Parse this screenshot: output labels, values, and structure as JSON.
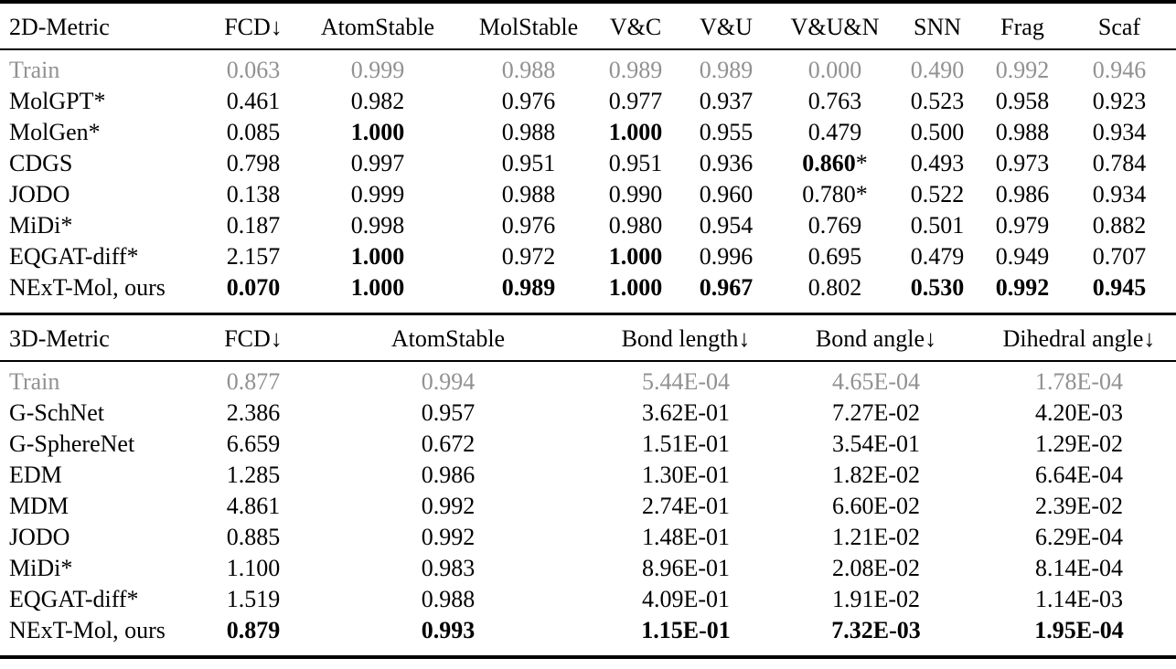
{
  "colors": {
    "background": "#ffffff",
    "text": "#000000",
    "muted_row": "#919191",
    "rule": "#000000"
  },
  "tables": [
    {
      "id": "table-2d",
      "header": [
        "2D-Metric",
        "FCD↓",
        "AtomStable",
        "MolStable",
        "V&C",
        "V&U",
        "V&U&N",
        "SNN",
        "Frag",
        "Scaf"
      ],
      "rows": [
        {
          "label": "Train",
          "muted": true,
          "values": [
            "0.063",
            "0.999",
            "0.988",
            "0.989",
            "0.989",
            "0.000",
            "0.490",
            "0.992",
            "0.946"
          ],
          "bold": []
        },
        {
          "label": "MolGPT*",
          "muted": false,
          "values": [
            "0.461",
            "0.982",
            "0.976",
            "0.977",
            "0.937",
            "0.763",
            "0.523",
            "0.958",
            "0.923"
          ],
          "bold": []
        },
        {
          "label": "MolGen*",
          "muted": false,
          "values": [
            "0.085",
            "1.000",
            "0.988",
            "1.000",
            "0.955",
            "0.479",
            "0.500",
            "0.988",
            "0.934"
          ],
          "bold": [
            1,
            3
          ]
        },
        {
          "label": "CDGS",
          "muted": false,
          "values": [
            "0.798",
            "0.997",
            "0.951",
            "0.951",
            "0.936",
            "0.860*",
            "0.493",
            "0.973",
            "0.784"
          ],
          "bold": [
            5
          ]
        },
        {
          "label": "JODO",
          "muted": false,
          "values": [
            "0.138",
            "0.999",
            "0.988",
            "0.990",
            "0.960",
            "0.780*",
            "0.522",
            "0.986",
            "0.934"
          ],
          "bold": []
        },
        {
          "label": "MiDi*",
          "muted": false,
          "values": [
            "0.187",
            "0.998",
            "0.976",
            "0.980",
            "0.954",
            "0.769",
            "0.501",
            "0.979",
            "0.882"
          ],
          "bold": []
        },
        {
          "label": "EQGAT-diff*",
          "muted": false,
          "values": [
            "2.157",
            "1.000",
            "0.972",
            "1.000",
            "0.996",
            "0.695",
            "0.479",
            "0.949",
            "0.707"
          ],
          "bold": [
            1,
            3
          ]
        },
        {
          "label": "NExT-Mol, ours",
          "muted": false,
          "values": [
            "0.070",
            "1.000",
            "0.989",
            "1.000",
            "0.967",
            "0.802",
            "0.530",
            "0.992",
            "0.945"
          ],
          "bold": [
            0,
            1,
            2,
            3,
            4,
            6,
            7,
            8
          ]
        }
      ]
    },
    {
      "id": "table-3d",
      "header": [
        "3D-Metric",
        "FCD↓",
        "AtomStable",
        "Bond length↓",
        "Bond angle↓",
        "Dihedral angle↓"
      ],
      "rows": [
        {
          "label": "Train",
          "muted": true,
          "values": [
            "0.877",
            "0.994",
            "5.44E-04",
            "4.65E-04",
            "1.78E-04"
          ],
          "bold": []
        },
        {
          "label": "G-SchNet",
          "muted": false,
          "values": [
            "2.386",
            "0.957",
            "3.62E-01",
            "7.27E-02",
            "4.20E-03"
          ],
          "bold": []
        },
        {
          "label": "G-SphereNet",
          "muted": false,
          "values": [
            "6.659",
            "0.672",
            "1.51E-01",
            "3.54E-01",
            "1.29E-02"
          ],
          "bold": []
        },
        {
          "label": "EDM",
          "muted": false,
          "values": [
            "1.285",
            "0.986",
            "1.30E-01",
            "1.82E-02",
            "6.64E-04"
          ],
          "bold": []
        },
        {
          "label": "MDM",
          "muted": false,
          "values": [
            "4.861",
            "0.992",
            "2.74E-01",
            "6.60E-02",
            "2.39E-02"
          ],
          "bold": []
        },
        {
          "label": "JODO",
          "muted": false,
          "values": [
            "0.885",
            "0.992",
            "1.48E-01",
            "1.21E-02",
            "6.29E-04"
          ],
          "bold": []
        },
        {
          "label": "MiDi*",
          "muted": false,
          "values": [
            "1.100",
            "0.983",
            "8.96E-01",
            "2.08E-02",
            "8.14E-04"
          ],
          "bold": []
        },
        {
          "label": "EQGAT-diff*",
          "muted": false,
          "values": [
            "1.519",
            "0.988",
            "4.09E-01",
            "1.91E-02",
            "1.14E-03"
          ],
          "bold": []
        },
        {
          "label": "NExT-Mol, ours",
          "muted": false,
          "values": [
            "0.879",
            "0.993",
            "1.15E-01",
            "7.32E-03",
            "1.95E-04"
          ],
          "bold": [
            0,
            1,
            2,
            3,
            4
          ]
        }
      ]
    }
  ]
}
